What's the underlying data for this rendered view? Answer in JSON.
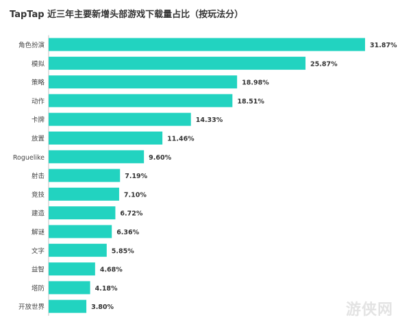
{
  "chart_data": {
    "type": "bar",
    "orientation": "horizontal",
    "title": "TapTap 近三年主要新增头部游戏下载量占比（按玩法分）",
    "categories": [
      "角色扮演",
      "模拟",
      "策略",
      "动作",
      "卡牌",
      "放置",
      "Roguelike",
      "射击",
      "竞技",
      "建造",
      "解谜",
      "文字",
      "益智",
      "塔防",
      "开放世界"
    ],
    "values": [
      31.87,
      25.87,
      18.98,
      18.51,
      14.33,
      11.46,
      9.6,
      7.19,
      7.1,
      6.72,
      6.36,
      5.85,
      4.68,
      4.18,
      3.8
    ],
    "value_labels": [
      "31.87%",
      "25.87%",
      "18.98%",
      "18.51%",
      "14.33%",
      "11.46%",
      "9.60%",
      "7.19%",
      "7.10%",
      "6.72%",
      "6.36%",
      "5.85%",
      "4.68%",
      "4.18%",
      "3.80%"
    ],
    "xlim": [
      0,
      31.87
    ],
    "grid": false,
    "bar_color": "#22d3c0"
  },
  "watermark": "游侠网"
}
